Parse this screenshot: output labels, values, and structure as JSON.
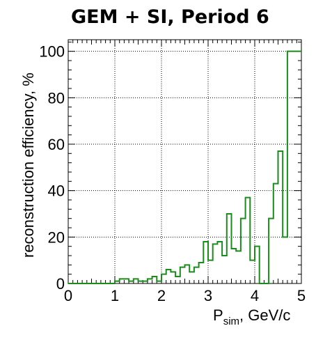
{
  "chart_data": {
    "type": "histogram",
    "title": "GEM + SI, Period 6",
    "xlabel": "P",
    "xlabel_sub": "sim",
    "xlabel_unit": ", GeV/c",
    "ylabel": "reconstruction efficiency, %",
    "xlim": [
      0,
      5
    ],
    "ylim": [
      0,
      105
    ],
    "grid": true,
    "line_color": "#1a8c1a",
    "bin_width": 0.1,
    "x_ticks": [
      0,
      1,
      2,
      3,
      4,
      5
    ],
    "y_ticks": [
      0,
      20,
      40,
      60,
      80,
      100
    ],
    "x_tick_labels": [
      "0",
      "1",
      "2",
      "3",
      "4",
      "5"
    ],
    "y_tick_labels": [
      "0",
      "20",
      "40",
      "60",
      "80",
      "100"
    ],
    "values": [
      0,
      0,
      0,
      0,
      0,
      0,
      0,
      0,
      0,
      0,
      1,
      2,
      2,
      1,
      2,
      1,
      1,
      2,
      3,
      1,
      4,
      6,
      5,
      3,
      7,
      8,
      5,
      7,
      9,
      18,
      10,
      17,
      18,
      12,
      30,
      15,
      14,
      28,
      37,
      10,
      16,
      0,
      0,
      28,
      43,
      57,
      20,
      100,
      100,
      100
    ]
  }
}
